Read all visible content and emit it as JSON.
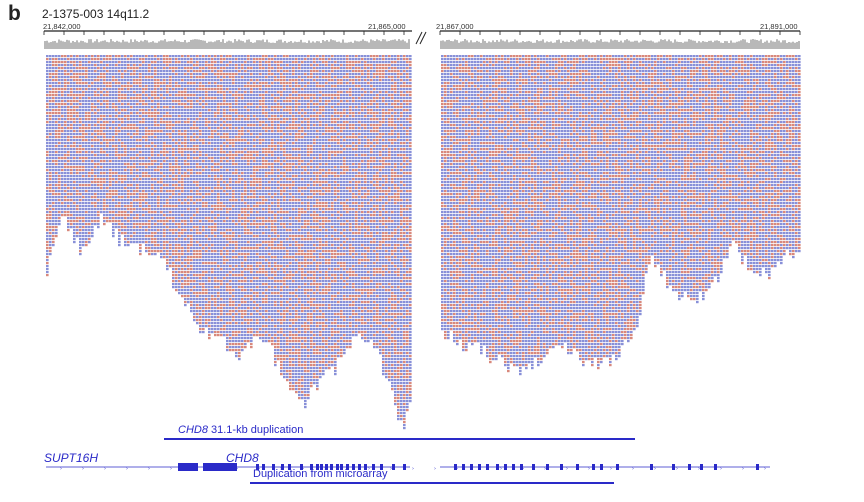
{
  "panel": {
    "letter": "b",
    "title": "2-1375-003 14q11.2"
  },
  "coordinates": [
    "21,842,000",
    "21,865,000",
    "21,867,000",
    "21,891,000"
  ],
  "tracks": {
    "chd8_duplication": {
      "gene": "CHD8",
      "text": "31.1-kb duplication"
    },
    "microarray_duplication": {
      "text": "Duplication from microarray"
    }
  },
  "genes": [
    "SUPT16H",
    "CHD8"
  ],
  "colors": {
    "read_blue": "#8890d8",
    "read_red": "#d8887c",
    "track_blue": "#2a2ac8",
    "coverage_gray": "#b8b8b8"
  }
}
